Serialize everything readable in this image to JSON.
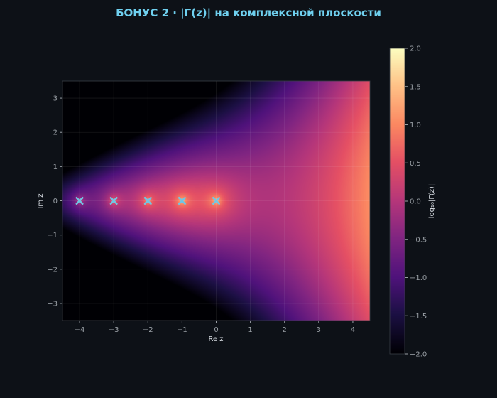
{
  "chart_data": {
    "type": "heatmap",
    "title": "БОНУС 2  ·  |Γ(z)| на комплексной плоскости",
    "xlabel": "Re z",
    "ylabel": "Im z",
    "xlim": [
      -4.5,
      4.5
    ],
    "ylim": [
      -3.5,
      3.5
    ],
    "x_ticks": [
      -4,
      -3,
      -2,
      -1,
      0,
      1,
      2,
      3,
      4
    ],
    "y_ticks": [
      -3,
      -2,
      -1,
      0,
      1,
      2,
      3
    ],
    "x_tick_labels": [
      "−4",
      "−3",
      "−2",
      "−1",
      "0",
      "1",
      "2",
      "3",
      "4"
    ],
    "y_tick_labels": [
      "−3",
      "−2",
      "−1",
      "0",
      "1",
      "2",
      "3"
    ],
    "grid": true,
    "function": "log10|Γ(z)|",
    "poles": [
      {
        "re": -4,
        "im": 0
      },
      {
        "re": -3,
        "im": 0
      },
      {
        "re": -2,
        "im": 0
      },
      {
        "re": -1,
        "im": 0
      },
      {
        "re": 0,
        "im": 0
      }
    ],
    "colorbar": {
      "label": "log₁₀|Γ(z)|",
      "range": [
        -2.0,
        2.0
      ],
      "ticks": [
        -2.0,
        -1.5,
        -1.0,
        -0.5,
        0.0,
        0.5,
        1.0,
        1.5,
        2.0
      ],
      "tick_labels": [
        "−2.0",
        "−1.5",
        "−1.0",
        "−0.5",
        "0.0",
        "0.5",
        "1.0",
        "1.5",
        "2.0"
      ],
      "colormap": "magma"
    },
    "colors": {
      "background": "#0d1117",
      "title": "#6fd0ef",
      "pole_marker": "#72c6e4"
    }
  }
}
